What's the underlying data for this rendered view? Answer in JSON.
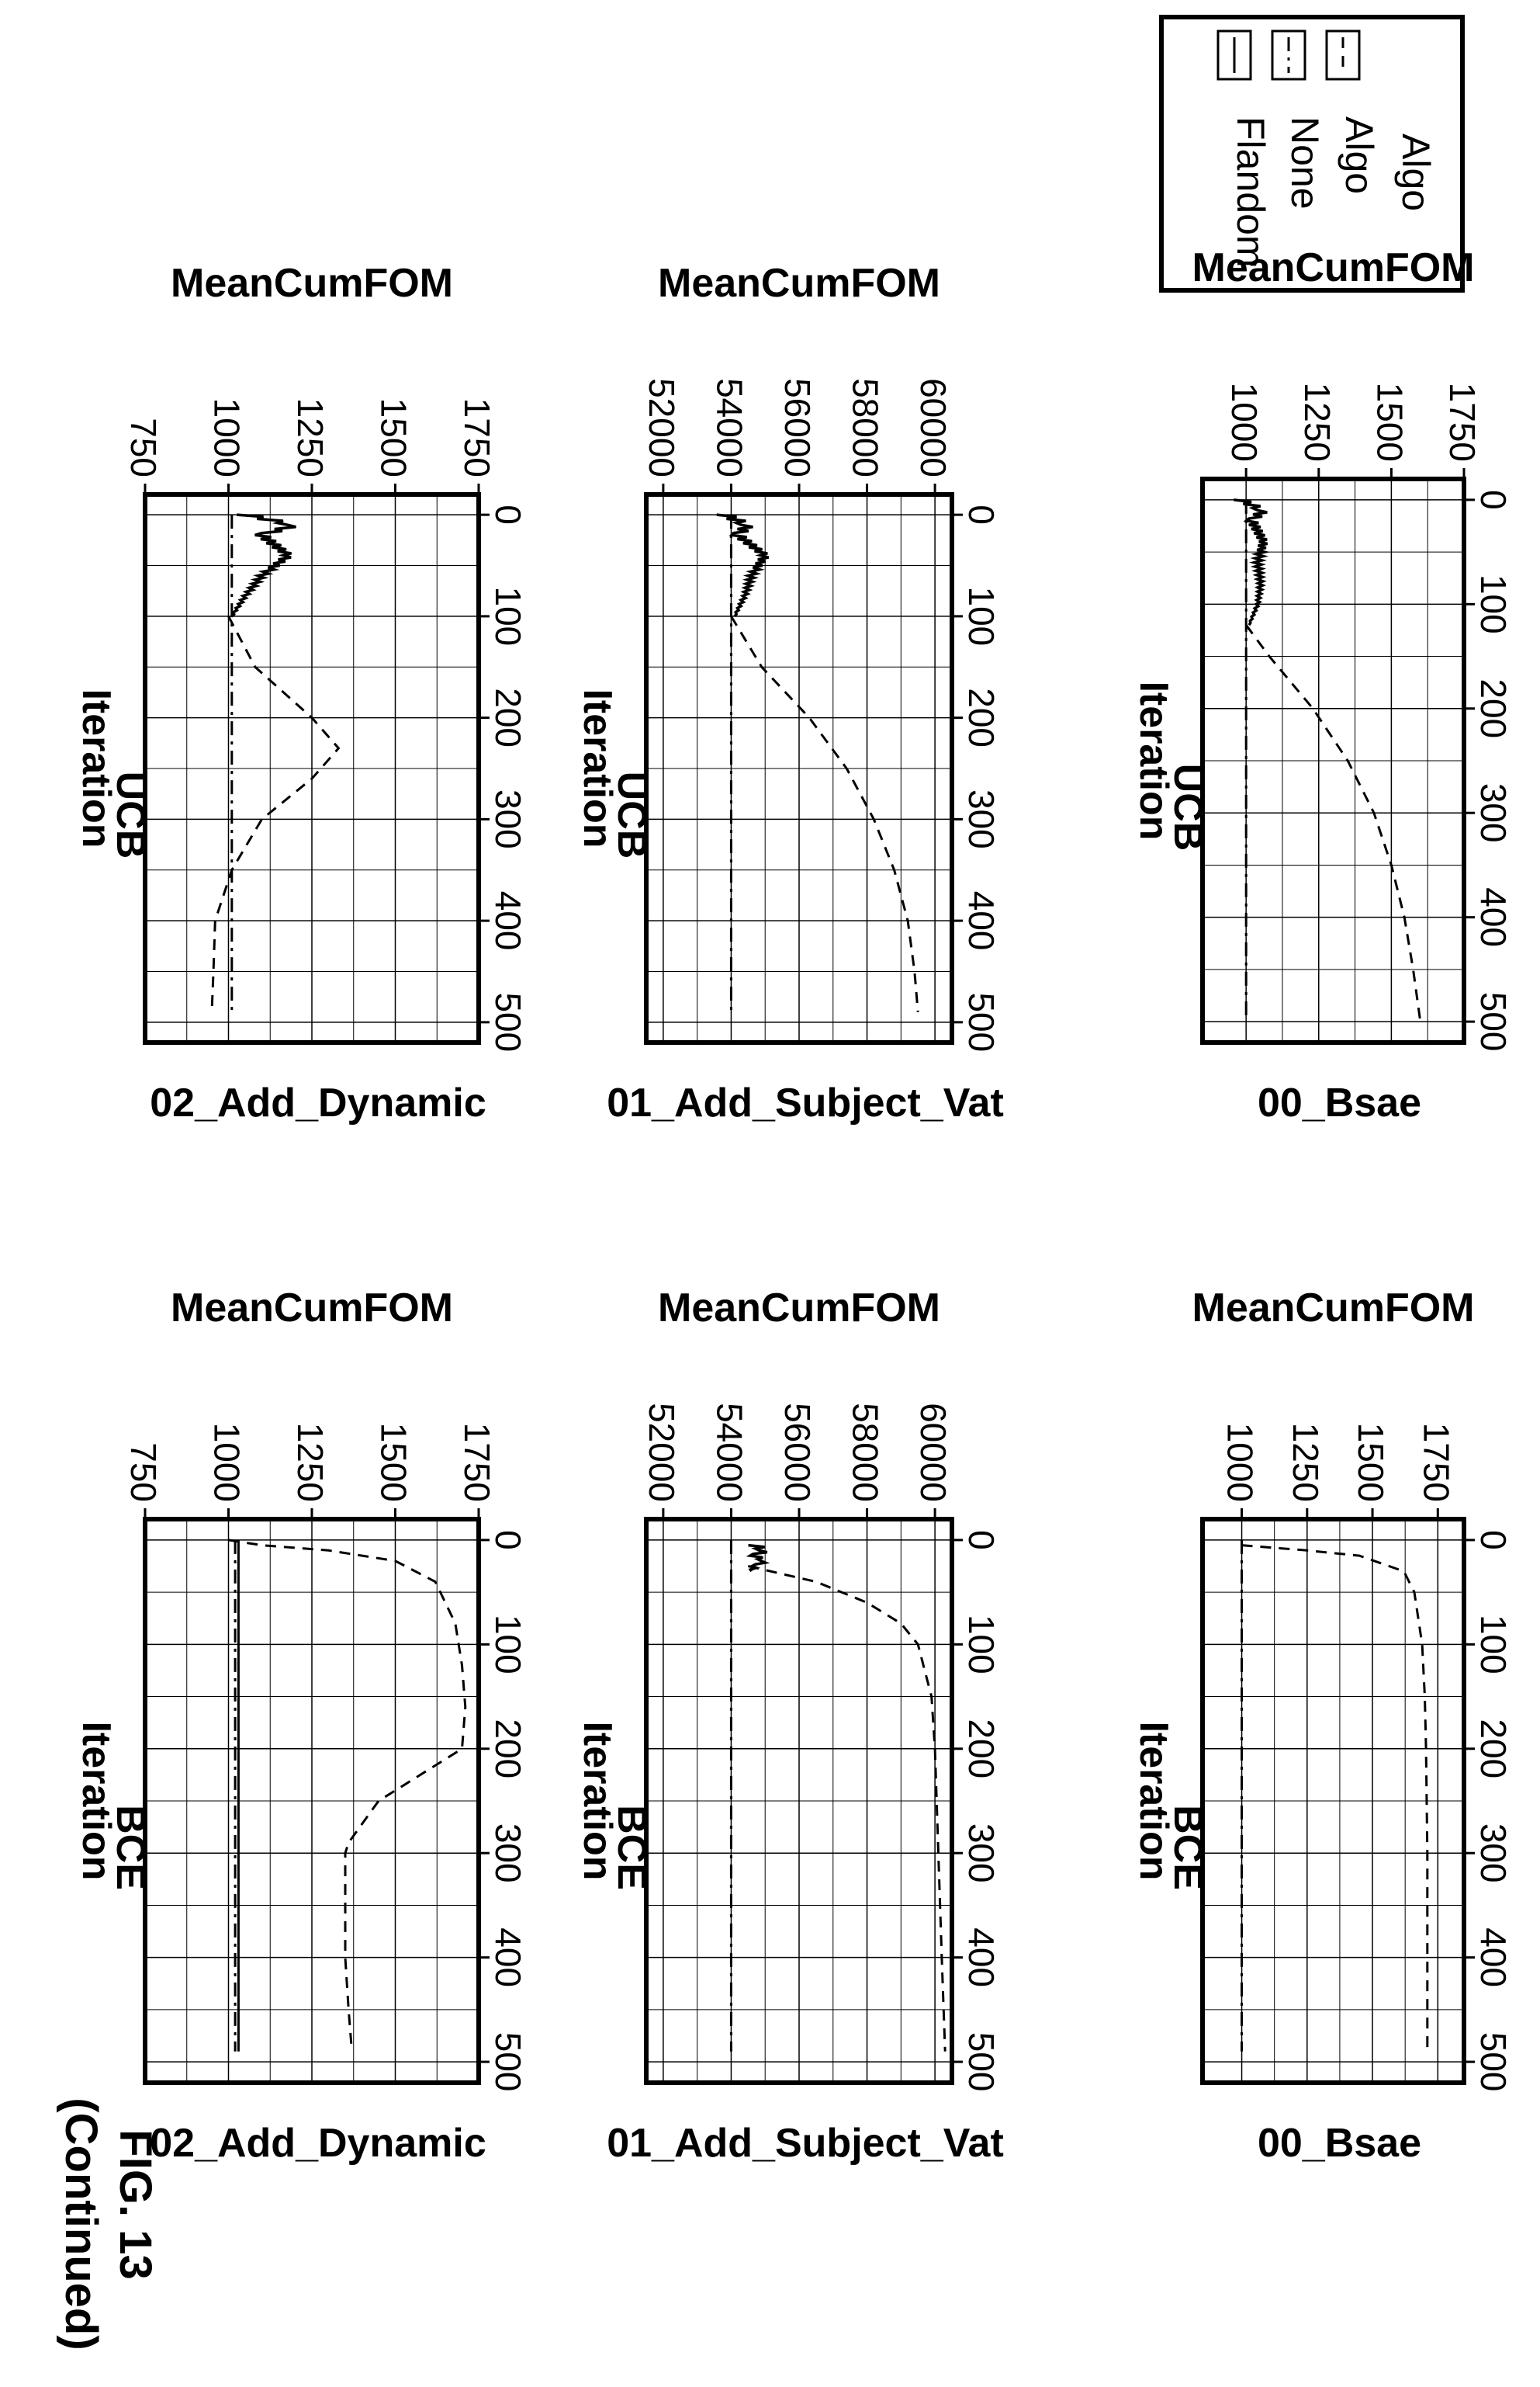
{
  "figure": {
    "label": "FIG. 13",
    "note": "(Continued)"
  },
  "legend": {
    "entries": [
      {
        "label": "Algo",
        "style": "dashed"
      },
      {
        "label": "None",
        "style": "dashdot"
      },
      {
        "label": "Flandom",
        "style": "solid"
      }
    ],
    "title": "Algo"
  },
  "chart_data": [
    {
      "type": "line",
      "title": "UCB",
      "xlabel": "Iteration",
      "ylabel": "MeanCumFOM",
      "caption": "00_Bsae",
      "xlim": [
        -20,
        520
      ],
      "ylim": [
        850,
        1750
      ],
      "xticks": [
        0,
        100,
        200,
        300,
        400,
        500
      ],
      "yticks": [
        1000,
        1250,
        1500,
        1750
      ],
      "grid": true,
      "series": [
        {
          "name": "Algo",
          "style": "dashed",
          "x": [
            120,
            150,
            200,
            250,
            300,
            350,
            400,
            450,
            500
          ],
          "y": [
            1000,
            1080,
            1230,
            1350,
            1440,
            1500,
            1545,
            1575,
            1600
          ]
        },
        {
          "name": "None",
          "style": "dashdot",
          "x": [
            0,
            100,
            200,
            300,
            400,
            500
          ],
          "y": [
            1000,
            1000,
            1000,
            1000,
            1000,
            1000
          ]
        },
        {
          "name": "Flandom",
          "style": "solid",
          "noisy": true,
          "x": [
            0,
            10,
            20,
            40,
            60,
            80,
            100,
            120
          ],
          "y": [
            980,
            1060,
            1020,
            1060,
            1040,
            1050,
            1040,
            1010
          ]
        }
      ]
    },
    {
      "type": "line",
      "title": "UCB",
      "xlabel": "Iteration",
      "ylabel": "MeanCumFOM",
      "caption": "01_Add_Subject_Vat",
      "xlim": [
        -20,
        520
      ],
      "ylim": [
        51500,
        60500
      ],
      "xticks": [
        0,
        100,
        200,
        300,
        400,
        500
      ],
      "yticks": [
        52000,
        54000,
        56000,
        58000,
        60000
      ],
      "grid": true,
      "series": [
        {
          "name": "Algo",
          "style": "dashed",
          "x": [
            100,
            150,
            200,
            250,
            300,
            350,
            400,
            450,
            490
          ],
          "y": [
            54000,
            54900,
            56300,
            57400,
            58200,
            58800,
            59200,
            59400,
            59500
          ]
        },
        {
          "name": "None",
          "style": "dashdot",
          "x": [
            0,
            100,
            200,
            300,
            400,
            490
          ],
          "y": [
            54000,
            54000,
            54000,
            54000,
            54000,
            54000
          ]
        },
        {
          "name": "Flandom",
          "style": "solid",
          "noisy": true,
          "x": [
            0,
            10,
            20,
            40,
            60,
            80,
            100
          ],
          "y": [
            53800,
            54500,
            54200,
            55000,
            54600,
            54400,
            54100
          ]
        }
      ]
    },
    {
      "type": "line",
      "title": "UCB",
      "xlabel": "Iteration",
      "ylabel": "MeanCumFOM",
      "caption": "02_Add_Dynamic",
      "xlim": [
        -20,
        520
      ],
      "ylim": [
        750,
        1750
      ],
      "xticks": [
        0,
        100,
        200,
        300,
        400,
        500
      ],
      "yticks": [
        750,
        1000,
        1250,
        1500,
        1750
      ],
      "grid": true,
      "series": [
        {
          "name": "Algo",
          "style": "dashed",
          "x": [
            100,
            150,
            200,
            230,
            260,
            300,
            350,
            400,
            450,
            490
          ],
          "y": [
            1000,
            1080,
            1250,
            1330,
            1250,
            1100,
            1010,
            960,
            955,
            950
          ]
        },
        {
          "name": "None",
          "style": "dashdot",
          "x": [
            0,
            100,
            200,
            300,
            400,
            490
          ],
          "y": [
            1010,
            1010,
            1010,
            1010,
            1010,
            1010
          ]
        },
        {
          "name": "Flandom",
          "style": "solid",
          "noisy": true,
          "x": [
            0,
            10,
            20,
            40,
            60,
            80,
            100
          ],
          "y": [
            1050,
            1200,
            1100,
            1180,
            1100,
            1050,
            1010
          ]
        }
      ]
    },
    {
      "type": "line",
      "title": "BCE",
      "xlabel": "Iteration",
      "ylabel": "MeanCumFOM",
      "caption": "00_Bsae",
      "xlim": [
        -20,
        520
      ],
      "ylim": [
        850,
        1850
      ],
      "xticks": [
        0,
        100,
        200,
        300,
        400,
        500
      ],
      "yticks": [
        1000,
        1250,
        1500,
        1750
      ],
      "grid": true,
      "series": [
        {
          "name": "Algo",
          "style": "dashed",
          "x": [
            5,
            10,
            15,
            30,
            50,
            100,
            150,
            200,
            300,
            400,
            490
          ],
          "y": [
            1000,
            1250,
            1450,
            1620,
            1660,
            1690,
            1700,
            1705,
            1710,
            1710,
            1710
          ]
        },
        {
          "name": "None",
          "style": "dashdot",
          "x": [
            0,
            100,
            200,
            300,
            400,
            490
          ],
          "y": [
            1000,
            1000,
            1000,
            1000,
            1000,
            1000
          ]
        }
      ]
    },
    {
      "type": "line",
      "title": "BCE",
      "xlabel": "Iteration",
      "ylabel": "MeanCumFOM",
      "caption": "01_Add_Subject_Vat",
      "xlim": [
        -20,
        520
      ],
      "ylim": [
        51500,
        60500
      ],
      "xticks": [
        0,
        100,
        200,
        300,
        400,
        500
      ],
      "yticks": [
        52000,
        54000,
        56000,
        58000,
        60000
      ],
      "grid": true,
      "series": [
        {
          "name": "Algo",
          "style": "dashed",
          "x": [
            25,
            40,
            60,
            80,
            100,
            150,
            200,
            300,
            400,
            490
          ],
          "y": [
            54500,
            56500,
            58000,
            59000,
            59500,
            59900,
            60000,
            60100,
            60200,
            60300
          ]
        },
        {
          "name": "None",
          "style": "dashdot",
          "x": [
            0,
            100,
            200,
            300,
            400,
            490
          ],
          "y": [
            54000,
            54000,
            54000,
            54000,
            54000,
            54000
          ]
        },
        {
          "name": "Flandom",
          "style": "solid",
          "noisy": true,
          "x": [
            5,
            10,
            15,
            20,
            25,
            30
          ],
          "y": [
            54700,
            55000,
            54700,
            55000,
            54700,
            54600
          ]
        }
      ]
    },
    {
      "type": "line",
      "title": "BCE",
      "xlabel": "Iteration",
      "ylabel": "MeanCumFOM",
      "caption": "02_Add_Dynamic",
      "xlim": [
        -20,
        520
      ],
      "ylim": [
        750,
        1750
      ],
      "xticks": [
        0,
        100,
        200,
        300,
        400,
        500
      ],
      "yticks": [
        750,
        1000,
        1250,
        1500,
        1750
      ],
      "grid": true,
      "series": [
        {
          "name": "Algo",
          "style": "dashed",
          "x": [
            0,
            5,
            10,
            20,
            40,
            80,
            120,
            160,
            200,
            220,
            250,
            290,
            300,
            350,
            400,
            450,
            490
          ],
          "y": [
            1000,
            1100,
            1300,
            1500,
            1620,
            1680,
            1700,
            1710,
            1700,
            1600,
            1450,
            1360,
            1350,
            1350,
            1350,
            1360,
            1370
          ]
        },
        {
          "name": "None",
          "style": "dashdot",
          "x": [
            0,
            100,
            200,
            300,
            400,
            490
          ],
          "y": [
            1020,
            1020,
            1020,
            1020,
            1020,
            1020
          ]
        },
        {
          "name": "Flandom",
          "style": "solid",
          "x": [
            0,
            100,
            200,
            300,
            400,
            490
          ],
          "y": [
            1030,
            1030,
            1030,
            1030,
            1030,
            1030
          ]
        }
      ]
    }
  ]
}
